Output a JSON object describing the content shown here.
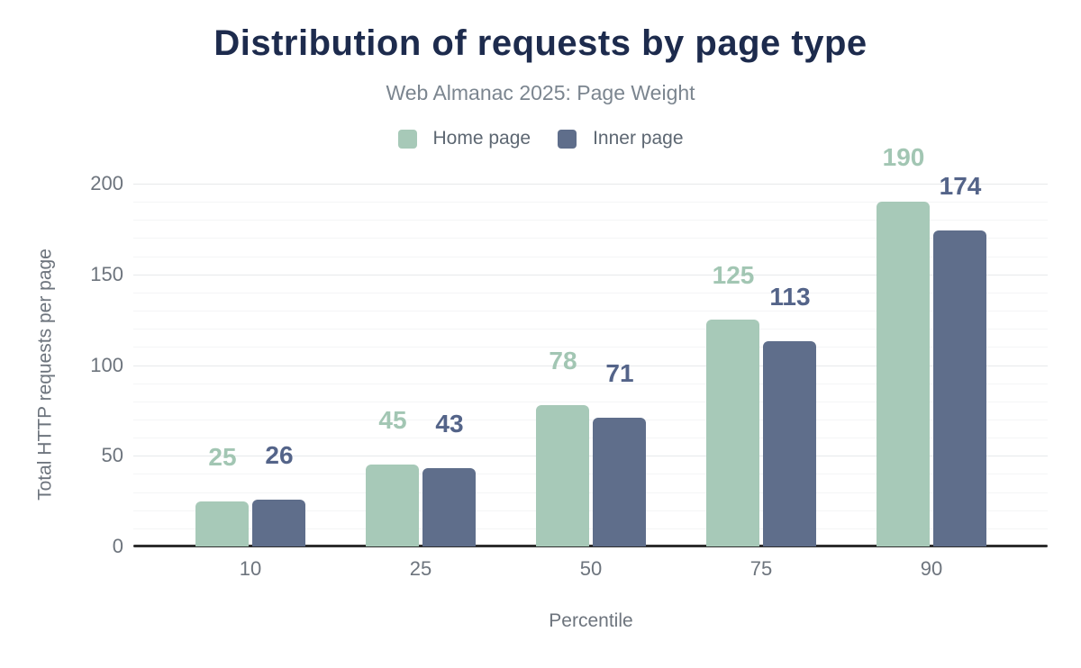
{
  "colors": {
    "title": "#1d2b4d",
    "subtitle": "#7b858f",
    "legend_text": "#5d6772",
    "axis_text": "#6d747d",
    "grid_minor": "#f4f5f6",
    "grid_major": "#e7e9eb",
    "baseline": "#2e2e2e"
  },
  "chart_data": {
    "type": "bar",
    "title": "Distribution of requests by page type",
    "subtitle": "Web Almanac 2025: Page Weight",
    "xlabel": "Percentile",
    "ylabel": "Total HTTP requests per page",
    "categories": [
      "10",
      "25",
      "50",
      "75",
      "90"
    ],
    "series": [
      {
        "name": "Home page",
        "color": "#a7c9b8",
        "label_color": "#a2c6b3",
        "values": [
          25,
          45,
          78,
          125,
          190
        ]
      },
      {
        "name": "Inner page",
        "color": "#5f6e8b",
        "label_color": "#546489",
        "values": [
          26,
          43,
          71,
          113,
          174
        ]
      }
    ],
    "ylim": [
      0,
      200
    ],
    "yticks": [
      0,
      50,
      100,
      150,
      200
    ],
    "minor_grid_step": 10,
    "grid": "on",
    "legend_position": "top",
    "data_labels": "on"
  }
}
